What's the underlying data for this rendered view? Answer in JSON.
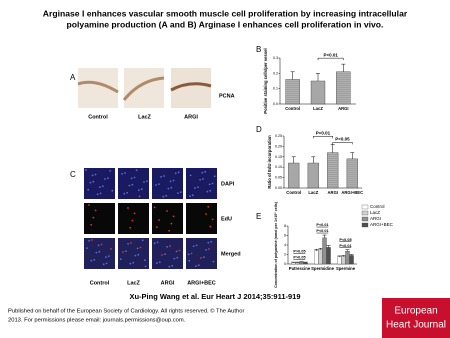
{
  "header": {
    "title": "Arginase I enhances vascular smooth muscle cell proliferation by increasing intracellular polyamine production (A and B) Arginase I enhances cell proliferation in vivo."
  },
  "panels": {
    "a": {
      "letter": "A",
      "columns": [
        "Control",
        "LacZ",
        "ARGI"
      ],
      "stain": "PCNA"
    },
    "c": {
      "letter": "C",
      "columns": [
        "Control",
        "LacZ",
        "ARGI",
        "ARGI+BEC"
      ],
      "rows": [
        "DAPI",
        "EdU",
        "Merged"
      ]
    },
    "b_letter": "B",
    "d_letter": "D",
    "e_letter": "E"
  },
  "chart_data": [
    {
      "type": "bar",
      "y_label": "Positive staining cells/per vessel",
      "categories": [
        "Control",
        "LacZ",
        "ARGI"
      ],
      "values": [
        0.16,
        0.15,
        0.21
      ],
      "errors": [
        0.05,
        0.05,
        0.05
      ],
      "color": "#b0b0b0",
      "ylim": [
        0,
        0.3
      ],
      "yticks": [
        {
          "value": 0,
          "label": "0.0"
        },
        0.1,
        0.2,
        0.3
      ],
      "annotations": [
        "P<0.01"
      ]
    },
    {
      "type": "bar",
      "y_label": "Ratio of EdU incorporation",
      "categories": [
        "Control",
        "LacZ",
        "ARGI",
        "ARGI+BEC"
      ],
      "values": [
        0.12,
        0.12,
        0.17,
        0.14
      ],
      "errors": [
        0.03,
        0.03,
        0.04,
        0.03
      ],
      "color": "#b0b0b0",
      "ylim": [
        0,
        0.25
      ],
      "yticks": [
        {
          "value": 0,
          "label": "0.00"
        },
        {
          "value": 0.05,
          "label": "0.05"
        },
        {
          "value": 0.1,
          "label": "0.10"
        },
        {
          "value": 0.15,
          "label": "0.15"
        },
        {
          "value": 0.2,
          "label": "0.20"
        },
        {
          "value": 0.25,
          "label": "0.25"
        }
      ],
      "annotations": [
        "P<0.01",
        "P<0.05"
      ]
    },
    {
      "type": "grouped_bar",
      "y_label": "Concentration of polyamine (nmol per 1×10⁶ cells)",
      "categories": [
        "Putrescine",
        "Spermidine",
        "Spermine"
      ],
      "series": [
        {
          "name": "Control",
          "color": "#ffffff",
          "values": [
            0.3,
            2.8,
            1.5
          ],
          "errors": [
            0.1,
            0.3,
            0.2
          ]
        },
        {
          "name": "LacZ",
          "color": "#d0d0d0",
          "values": [
            0.3,
            3.0,
            1.6
          ],
          "errors": [
            0.1,
            0.3,
            0.2
          ]
        },
        {
          "name": "ARGI",
          "color": "#909090",
          "values": [
            0.4,
            5.5,
            2.7
          ],
          "errors": [
            0.1,
            0.6,
            0.3
          ]
        },
        {
          "name": "ARGI+BEC",
          "color": "#505050",
          "values": [
            0.3,
            3.5,
            1.8
          ],
          "errors": [
            0.1,
            0.4,
            0.2
          ]
        }
      ],
      "ylim": [
        0,
        8
      ],
      "yticks": [
        0,
        2,
        4,
        6,
        8
      ],
      "annotations": [
        "P>0.05",
        "P>0.05",
        "P<0.01",
        "P<0.01",
        "P<0.01",
        "P<0.05"
      ]
    }
  ],
  "citation": "Xu-Ping Wang et al. Eur Heart J 2014;35:911-919",
  "footer": {
    "line1": "Published on behalf of the European Society of Cardiology. All rights reserved. © The Author",
    "line2": "2013. For permissions please email: journals.permissions@oup.com."
  },
  "logo": {
    "line1": "European",
    "line2": "Heart Journal"
  }
}
